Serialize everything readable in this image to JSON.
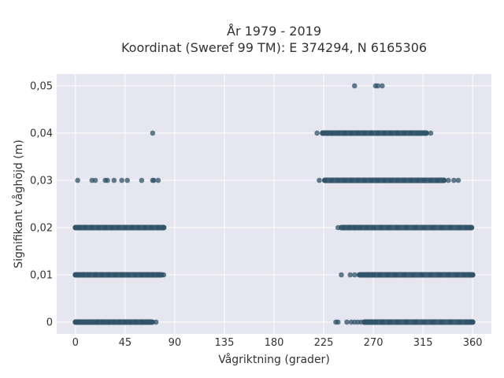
{
  "chart_data": {
    "type": "scatter",
    "title": "År 1979 - 2019",
    "subtitle": "Koordinat (Sweref 99 TM): E 374294, N 6165306",
    "xlabel": "Vågriktning (grader)",
    "ylabel": "Signifikant våghöjd (m)",
    "xlim": [
      -17,
      377
    ],
    "ylim": [
      -0.0025,
      0.0525
    ],
    "xticks": [
      0,
      45,
      90,
      135,
      180,
      225,
      270,
      315,
      360
    ],
    "xtick_labels": [
      "0",
      "45",
      "90",
      "135",
      "180",
      "225",
      "270",
      "315",
      "360"
    ],
    "yticks": [
      0,
      0.01,
      0.02,
      0.03,
      0.04,
      0.05
    ],
    "ytick_labels": [
      "0",
      "0,01",
      "0,02",
      "0,03",
      "0,04",
      "0,05"
    ],
    "grid": true,
    "legend": "none",
    "background_color": "#e5e6ef",
    "grid_color": "#ffffff",
    "marker_color": "#2f5167",
    "marker_opacity": 0.75,
    "series": [
      {
        "points": [
          {
            "x": 0,
            "y": 0
          },
          {
            "x": 2,
            "y": 0
          },
          {
            "x": 5,
            "y": 0
          },
          {
            "x": 8,
            "y": 0
          },
          {
            "x": 12,
            "y": 0
          },
          {
            "x": 16,
            "y": 0
          },
          {
            "x": 20,
            "y": 0
          },
          {
            "x": 25,
            "y": 0
          },
          {
            "x": 30,
            "y": 0
          },
          {
            "x": 35,
            "y": 0
          },
          {
            "x": 40,
            "y": 0
          },
          {
            "x": 45,
            "y": 0
          },
          {
            "x": 50,
            "y": 0
          },
          {
            "x": 55,
            "y": 0
          },
          {
            "x": 60,
            "y": 0
          },
          {
            "x": 64,
            "y": 0
          },
          {
            "x": 67,
            "y": 0
          },
          {
            "x": 70,
            "y": 0
          },
          {
            "x": 73,
            "y": 0
          },
          {
            "x": 236,
            "y": 0
          },
          {
            "x": 238,
            "y": 0
          },
          {
            "x": 246,
            "y": 0
          },
          {
            "x": 250,
            "y": 0
          },
          {
            "x": 253,
            "y": 0
          },
          {
            "x": 256,
            "y": 0
          },
          {
            "x": 259,
            "y": 0
          },
          {
            "x": 262,
            "y": 0
          },
          {
            "x": 265,
            "y": 0
          },
          {
            "x": 268,
            "y": 0
          },
          {
            "x": 272,
            "y": 0
          },
          {
            "x": 278,
            "y": 0
          },
          {
            "x": 285,
            "y": 0
          },
          {
            "x": 292,
            "y": 0
          },
          {
            "x": 300,
            "y": 0
          },
          {
            "x": 308,
            "y": 0
          },
          {
            "x": 316,
            "y": 0
          },
          {
            "x": 324,
            "y": 0
          },
          {
            "x": 332,
            "y": 0
          },
          {
            "x": 340,
            "y": 0
          },
          {
            "x": 348,
            "y": 0
          },
          {
            "x": 354,
            "y": 0
          },
          {
            "x": 358,
            "y": 0
          },
          {
            "x": 360,
            "y": 0
          },
          {
            "x": 0,
            "y": 0.01
          },
          {
            "x": 3,
            "y": 0.01
          },
          {
            "x": 7,
            "y": 0.01
          },
          {
            "x": 12,
            "y": 0.01
          },
          {
            "x": 18,
            "y": 0.01
          },
          {
            "x": 24,
            "y": 0.01
          },
          {
            "x": 30,
            "y": 0.01
          },
          {
            "x": 36,
            "y": 0.01
          },
          {
            "x": 42,
            "y": 0.01
          },
          {
            "x": 48,
            "y": 0.01
          },
          {
            "x": 54,
            "y": 0.01
          },
          {
            "x": 60,
            "y": 0.01
          },
          {
            "x": 65,
            "y": 0.01
          },
          {
            "x": 70,
            "y": 0.01
          },
          {
            "x": 75,
            "y": 0.01
          },
          {
            "x": 80,
            "y": 0.01
          },
          {
            "x": 241,
            "y": 0.01
          },
          {
            "x": 249,
            "y": 0.01
          },
          {
            "x": 253,
            "y": 0.01
          },
          {
            "x": 257,
            "y": 0.01
          },
          {
            "x": 261,
            "y": 0.01
          },
          {
            "x": 265,
            "y": 0.01
          },
          {
            "x": 270,
            "y": 0.01
          },
          {
            "x": 276,
            "y": 0.01
          },
          {
            "x": 283,
            "y": 0.01
          },
          {
            "x": 290,
            "y": 0.01
          },
          {
            "x": 298,
            "y": 0.01
          },
          {
            "x": 306,
            "y": 0.01
          },
          {
            "x": 314,
            "y": 0.01
          },
          {
            "x": 322,
            "y": 0.01
          },
          {
            "x": 330,
            "y": 0.01
          },
          {
            "x": 338,
            "y": 0.01
          },
          {
            "x": 346,
            "y": 0.01
          },
          {
            "x": 352,
            "y": 0.01
          },
          {
            "x": 357,
            "y": 0.01
          },
          {
            "x": 360,
            "y": 0.01
          },
          {
            "x": 0,
            "y": 0.02
          },
          {
            "x": 4,
            "y": 0.02
          },
          {
            "x": 9,
            "y": 0.02
          },
          {
            "x": 15,
            "y": 0.02
          },
          {
            "x": 21,
            "y": 0.02
          },
          {
            "x": 27,
            "y": 0.02
          },
          {
            "x": 33,
            "y": 0.02
          },
          {
            "x": 39,
            "y": 0.02
          },
          {
            "x": 45,
            "y": 0.02
          },
          {
            "x": 51,
            "y": 0.02
          },
          {
            "x": 57,
            "y": 0.02
          },
          {
            "x": 63,
            "y": 0.02
          },
          {
            "x": 69,
            "y": 0.02
          },
          {
            "x": 75,
            "y": 0.02
          },
          {
            "x": 80,
            "y": 0.02
          },
          {
            "x": 238,
            "y": 0.02
          },
          {
            "x": 243,
            "y": 0.02
          },
          {
            "x": 248,
            "y": 0.02
          },
          {
            "x": 253,
            "y": 0.02
          },
          {
            "x": 258,
            "y": 0.02
          },
          {
            "x": 264,
            "y": 0.02
          },
          {
            "x": 270,
            "y": 0.02
          },
          {
            "x": 277,
            "y": 0.02
          },
          {
            "x": 284,
            "y": 0.02
          },
          {
            "x": 292,
            "y": 0.02
          },
          {
            "x": 300,
            "y": 0.02
          },
          {
            "x": 308,
            "y": 0.02
          },
          {
            "x": 316,
            "y": 0.02
          },
          {
            "x": 324,
            "y": 0.02
          },
          {
            "x": 332,
            "y": 0.02
          },
          {
            "x": 340,
            "y": 0.02
          },
          {
            "x": 348,
            "y": 0.02
          },
          {
            "x": 354,
            "y": 0.02
          },
          {
            "x": 358,
            "y": 0.02
          },
          {
            "x": 2,
            "y": 0.03
          },
          {
            "x": 15,
            "y": 0.03
          },
          {
            "x": 18,
            "y": 0.03
          },
          {
            "x": 27,
            "y": 0.03
          },
          {
            "x": 29,
            "y": 0.03
          },
          {
            "x": 35,
            "y": 0.03
          },
          {
            "x": 42,
            "y": 0.03
          },
          {
            "x": 47,
            "y": 0.03
          },
          {
            "x": 60,
            "y": 0.03
          },
          {
            "x": 70,
            "y": 0.03
          },
          {
            "x": 71,
            "y": 0.03
          },
          {
            "x": 75,
            "y": 0.03
          },
          {
            "x": 221,
            "y": 0.03
          },
          {
            "x": 226,
            "y": 0.03
          },
          {
            "x": 232,
            "y": 0.03
          },
          {
            "x": 238,
            "y": 0.03
          },
          {
            "x": 244,
            "y": 0.03
          },
          {
            "x": 250,
            "y": 0.03
          },
          {
            "x": 256,
            "y": 0.03
          },
          {
            "x": 262,
            "y": 0.03
          },
          {
            "x": 268,
            "y": 0.03
          },
          {
            "x": 274,
            "y": 0.03
          },
          {
            "x": 280,
            "y": 0.03
          },
          {
            "x": 286,
            "y": 0.03
          },
          {
            "x": 292,
            "y": 0.03
          },
          {
            "x": 298,
            "y": 0.03
          },
          {
            "x": 304,
            "y": 0.03
          },
          {
            "x": 310,
            "y": 0.03
          },
          {
            "x": 316,
            "y": 0.03
          },
          {
            "x": 322,
            "y": 0.03
          },
          {
            "x": 328,
            "y": 0.03
          },
          {
            "x": 334,
            "y": 0.03
          },
          {
            "x": 338,
            "y": 0.03
          },
          {
            "x": 343,
            "y": 0.03
          },
          {
            "x": 347,
            "y": 0.03
          },
          {
            "x": 70,
            "y": 0.04
          },
          {
            "x": 219,
            "y": 0.04
          },
          {
            "x": 224,
            "y": 0.04
          },
          {
            "x": 228,
            "y": 0.04
          },
          {
            "x": 233,
            "y": 0.04
          },
          {
            "x": 238,
            "y": 0.04
          },
          {
            "x": 244,
            "y": 0.04
          },
          {
            "x": 250,
            "y": 0.04
          },
          {
            "x": 256,
            "y": 0.04
          },
          {
            "x": 262,
            "y": 0.04
          },
          {
            "x": 268,
            "y": 0.04
          },
          {
            "x": 274,
            "y": 0.04
          },
          {
            "x": 280,
            "y": 0.04
          },
          {
            "x": 286,
            "y": 0.04
          },
          {
            "x": 292,
            "y": 0.04
          },
          {
            "x": 298,
            "y": 0.04
          },
          {
            "x": 304,
            "y": 0.04
          },
          {
            "x": 310,
            "y": 0.04
          },
          {
            "x": 314,
            "y": 0.04
          },
          {
            "x": 318,
            "y": 0.04
          },
          {
            "x": 322,
            "y": 0.04
          },
          {
            "x": 253,
            "y": 0.05
          },
          {
            "x": 272,
            "y": 0.05
          },
          {
            "x": 274,
            "y": 0.05
          },
          {
            "x": 278,
            "y": 0.05
          }
        ],
        "bands": [
          {
            "y": 0,
            "from": 0,
            "to": 69
          },
          {
            "y": 0,
            "from": 262,
            "to": 360
          },
          {
            "y": 0.01,
            "from": 0,
            "to": 78
          },
          {
            "y": 0.01,
            "from": 258,
            "to": 360
          },
          {
            "y": 0.02,
            "from": 0,
            "to": 80
          },
          {
            "y": 0.02,
            "from": 241,
            "to": 359
          },
          {
            "y": 0.03,
            "from": 226,
            "to": 334
          },
          {
            "y": 0.04,
            "from": 224,
            "to": 318
          }
        ]
      }
    ]
  }
}
